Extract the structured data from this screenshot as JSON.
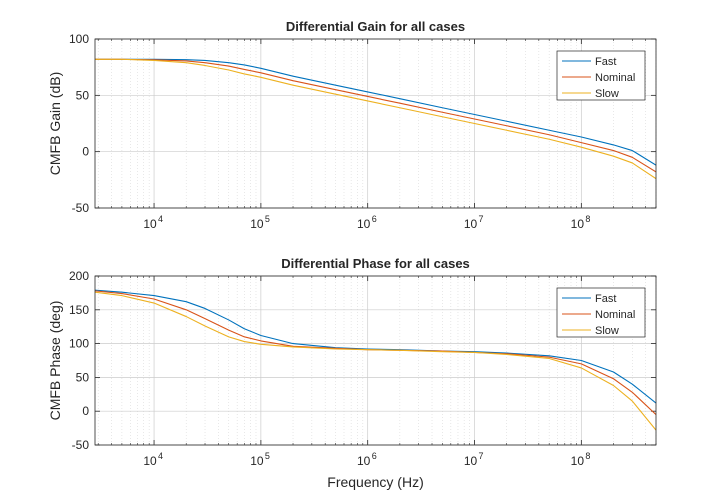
{
  "chart_data": [
    {
      "type": "line",
      "title": "Differential Gain for all cases",
      "xlabel": "",
      "ylabel": "CMFB Gain (dB)",
      "xscale": "log",
      "xlim": [
        2800,
        500000000
      ],
      "ylim": [
        -50,
        100
      ],
      "yticks": [
        "-50",
        "0",
        "50",
        "100"
      ],
      "xticks": [
        {
          "base": "10",
          "exp": "4",
          "value": 10000
        },
        {
          "base": "10",
          "exp": "5",
          "value": 100000
        },
        {
          "base": "10",
          "exp": "6",
          "value": 1000000
        },
        {
          "base": "10",
          "exp": "7",
          "value": 10000000
        },
        {
          "base": "10",
          "exp": "8",
          "value": 100000000
        }
      ],
      "grid": true,
      "legend_position": "top-right",
      "series": [
        {
          "name": "Fast",
          "color": "#0072BD",
          "x": [
            2800,
            5000,
            10000,
            20000,
            30000,
            50000,
            70000,
            100000,
            200000,
            500000,
            1000000,
            2000000,
            5000000,
            10000000,
            20000000,
            50000000,
            100000000,
            200000000,
            300000000,
            500000000
          ],
          "y": [
            82,
            82,
            82,
            81.6,
            81,
            79,
            77,
            74,
            67,
            59,
            53,
            47,
            39,
            33,
            27,
            19,
            13,
            6,
            1,
            -12
          ]
        },
        {
          "name": "Nominal",
          "color": "#D95319",
          "x": [
            2800,
            5000,
            10000,
            20000,
            30000,
            50000,
            70000,
            100000,
            200000,
            500000,
            1000000,
            2000000,
            5000000,
            10000000,
            20000000,
            50000000,
            100000000,
            200000000,
            300000000,
            500000000
          ],
          "y": [
            82,
            82,
            81.5,
            80.5,
            79,
            76,
            73,
            70,
            63,
            55,
            49,
            43,
            35,
            29,
            23,
            15,
            8,
            1,
            -5,
            -18
          ]
        },
        {
          "name": "Slow",
          "color": "#EDB120",
          "x": [
            2800,
            5000,
            10000,
            20000,
            30000,
            50000,
            70000,
            100000,
            200000,
            500000,
            1000000,
            2000000,
            5000000,
            10000000,
            20000000,
            50000000,
            100000000,
            200000000,
            300000000,
            500000000
          ],
          "y": [
            82,
            82,
            81,
            79,
            76.5,
            72.5,
            69,
            66,
            59,
            51,
            45,
            39,
            31,
            25,
            19,
            11,
            4,
            -4,
            -10,
            -24
          ]
        }
      ]
    },
    {
      "type": "line",
      "title": "Differential Phase for all cases",
      "xlabel": "Frequency (Hz)",
      "ylabel": "CMFB Phase (deg)",
      "xscale": "log",
      "xlim": [
        2800,
        500000000
      ],
      "ylim": [
        -50,
        200
      ],
      "yticks": [
        "-50",
        "0",
        "50",
        "100",
        "150",
        "200"
      ],
      "xticks": [
        {
          "base": "10",
          "exp": "4",
          "value": 10000
        },
        {
          "base": "10",
          "exp": "5",
          "value": 100000
        },
        {
          "base": "10",
          "exp": "6",
          "value": 1000000
        },
        {
          "base": "10",
          "exp": "7",
          "value": 10000000
        },
        {
          "base": "10",
          "exp": "8",
          "value": 100000000
        }
      ],
      "grid": true,
      "legend_position": "top-right",
      "series": [
        {
          "name": "Fast",
          "color": "#0072BD",
          "x": [
            2800,
            5000,
            10000,
            20000,
            30000,
            50000,
            70000,
            100000,
            200000,
            500000,
            1000000,
            2000000,
            5000000,
            10000000,
            20000000,
            50000000,
            100000000,
            200000000,
            300000000,
            500000000
          ],
          "y": [
            179,
            176,
            171,
            162,
            152,
            135,
            122,
            112,
            100,
            94,
            92,
            91,
            89,
            88,
            86,
            82,
            75,
            58,
            40,
            12
          ]
        },
        {
          "name": "Nominal",
          "color": "#D95319",
          "x": [
            2800,
            5000,
            10000,
            20000,
            30000,
            50000,
            70000,
            100000,
            200000,
            500000,
            1000000,
            2000000,
            5000000,
            10000000,
            20000000,
            50000000,
            100000000,
            200000000,
            300000000,
            500000000
          ],
          "y": [
            178,
            174,
            166,
            150,
            137,
            120,
            110,
            104,
            96,
            93,
            91,
            90,
            89,
            87,
            85,
            80,
            70,
            48,
            28,
            -5
          ]
        },
        {
          "name": "Slow",
          "color": "#EDB120",
          "x": [
            2800,
            5000,
            10000,
            20000,
            30000,
            50000,
            70000,
            100000,
            200000,
            500000,
            1000000,
            2000000,
            5000000,
            10000000,
            20000000,
            50000000,
            100000000,
            200000000,
            300000000,
            500000000
          ],
          "y": [
            176,
            171,
            160,
            140,
            126,
            110,
            103,
            99,
            95,
            92,
            91,
            90,
            88,
            87,
            84,
            78,
            64,
            38,
            15,
            -28
          ]
        }
      ]
    }
  ]
}
